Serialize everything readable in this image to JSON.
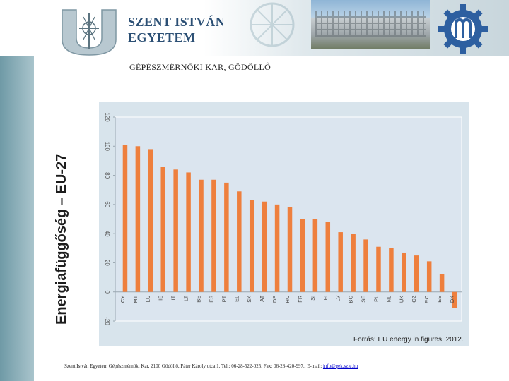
{
  "header": {
    "university_name_line1": "SZENT ISTVÁN",
    "university_name_line2": "EGYETEM",
    "faculty": "GÉPÉSZMÉRNÖKI KAR, GÖDÖLLŐ",
    "logo_icon": "university-crest-icon",
    "faculty_logo_icon": "gear-logo-icon"
  },
  "slide": {
    "vertical_title": "Energiafüggőség – EU-27",
    "source": "Forrás: EU energy in figures, 2012."
  },
  "footer": {
    "text": "Szent István Egyetem Gépészmérnöki Kar, 2100 Gödöllő, Páter Károly utca 1. Tel.: 06-28-522-025, Fax: 06-28-420-997., E-mail: ",
    "email": "info@gek.szie.hu"
  },
  "colors": {
    "bar": "#ee7f3d",
    "plot_bg": "#dbe5ef",
    "box_bg": "#d8e4ec",
    "title_blue": "#2b4f74"
  },
  "chart_data": {
    "type": "bar",
    "categories": [
      "CY",
      "MT",
      "LU",
      "IE",
      "IT",
      "LT",
      "BE",
      "ES",
      "PT",
      "EL",
      "SK",
      "AT",
      "DE",
      "HU",
      "FR",
      "SI",
      "FI",
      "LV",
      "BG",
      "SE",
      "PL",
      "NL",
      "UK",
      "CZ",
      "RO",
      "EE",
      "DK"
    ],
    "values": [
      101,
      100,
      98,
      86,
      84,
      82,
      77,
      77,
      75,
      69,
      63,
      62,
      60,
      58,
      50,
      50,
      48,
      41,
      40,
      36,
      31,
      30,
      27,
      25,
      21,
      12,
      -11
    ],
    "ylim": [
      -20,
      120
    ],
    "yticks": [
      "-20",
      "0",
      "20",
      "40",
      "60",
      "80",
      "100",
      "120"
    ],
    "ytick_values": [
      -20,
      0,
      20,
      40,
      60,
      80,
      100,
      120
    ],
    "grid": false,
    "title": "",
    "xlabel": "",
    "ylabel": ""
  }
}
